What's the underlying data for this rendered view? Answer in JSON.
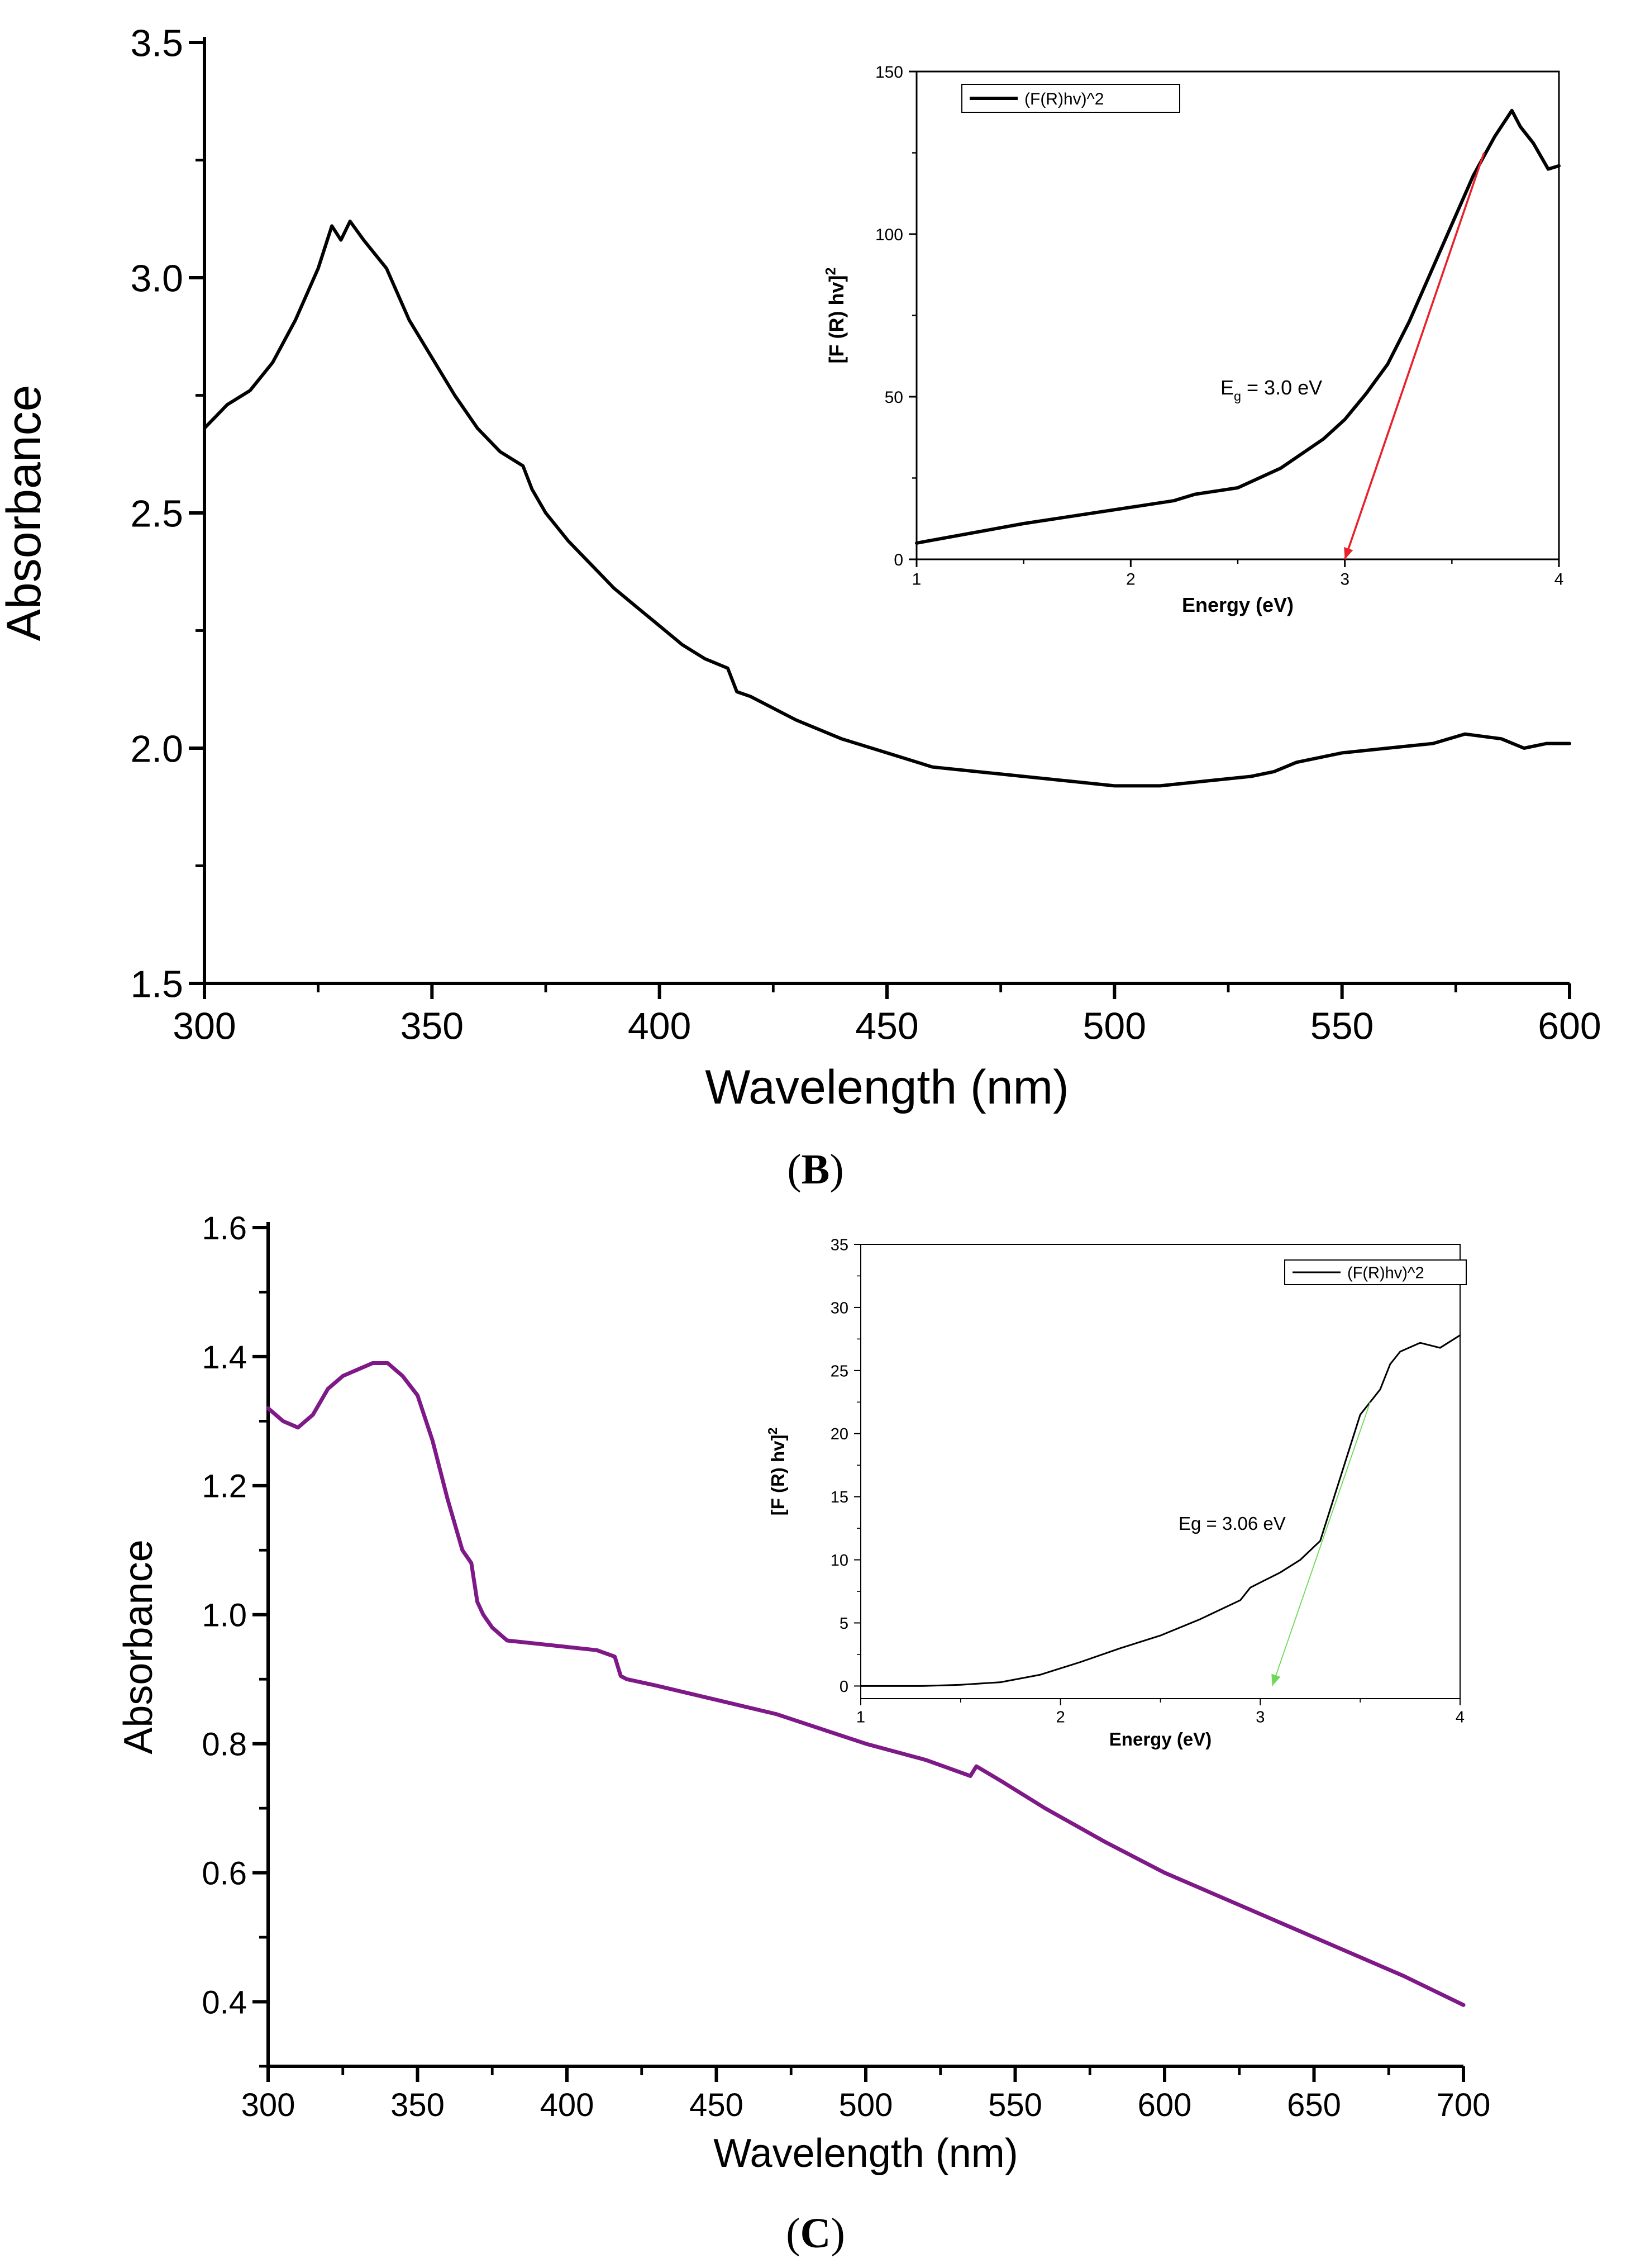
{
  "panels": [
    {
      "id": "B",
      "caption_open": "(",
      "caption_letter": "B",
      "caption_close": ")",
      "chart_index": 0,
      "inset_index": 1
    },
    {
      "id": "C",
      "caption_open": "(",
      "caption_letter": "C",
      "caption_close": ")",
      "chart_index": 2,
      "inset_index": 3
    }
  ],
  "chart_data": [
    {
      "panel": "B",
      "type": "line",
      "title": "",
      "xlabel": "Wavelength (nm)",
      "ylabel": "Absorbance",
      "xlim": [
        300,
        600
      ],
      "ylim": [
        1.5,
        3.5
      ],
      "xticks": [
        300,
        350,
        400,
        450,
        500,
        550,
        600
      ],
      "xtick_labels": [
        "300",
        "350",
        "400",
        "450",
        "500",
        "550",
        "600"
      ],
      "yticks": [
        1.5,
        2.0,
        2.5,
        3.0,
        3.5
      ],
      "ytick_labels": [
        "1.5",
        "2.0",
        "2.5",
        "3.0",
        "3.5"
      ],
      "grid": false,
      "colors": {
        "line": "#000000",
        "axes": "#000000"
      },
      "series": [
        {
          "x": [
            300,
            305,
            310,
            315,
            320,
            325,
            328,
            330,
            332,
            335,
            340,
            345,
            350,
            355,
            360,
            365,
            370,
            372,
            375,
            380,
            385,
            390,
            395,
            400,
            405,
            410,
            415,
            417,
            420,
            430,
            440,
            450,
            460,
            470,
            480,
            490,
            500,
            510,
            520,
            530,
            535,
            540,
            550,
            560,
            570,
            577,
            585,
            590,
            595,
            600
          ],
          "y": [
            2.68,
            2.73,
            2.76,
            2.82,
            2.91,
            3.02,
            3.11,
            3.08,
            3.12,
            3.08,
            3.02,
            2.91,
            2.83,
            2.75,
            2.68,
            2.63,
            2.6,
            2.55,
            2.5,
            2.44,
            2.39,
            2.34,
            2.3,
            2.26,
            2.22,
            2.19,
            2.17,
            2.12,
            2.11,
            2.06,
            2.02,
            1.99,
            1.96,
            1.95,
            1.94,
            1.93,
            1.92,
            1.92,
            1.93,
            1.94,
            1.95,
            1.97,
            1.99,
            2.0,
            2.01,
            2.03,
            2.02,
            2.0,
            2.01,
            2.01
          ]
        }
      ]
    },
    {
      "panel": "B",
      "type": "line",
      "title": "",
      "xlabel": "Energy (eV)",
      "ylabel_main": "[F (R) hv]",
      "ylabel_sup": "2",
      "xlim": [
        1,
        4
      ],
      "ylim": [
        0,
        150
      ],
      "xticks": [
        1,
        2,
        3,
        4
      ],
      "xtick_labels": [
        "1",
        "2",
        "3",
        "4"
      ],
      "yticks": [
        0,
        50,
        100,
        150
      ],
      "ytick_labels": [
        "0",
        "50",
        "100",
        "150"
      ],
      "grid": false,
      "legend": {
        "entries": [
          "(F(R)hv)^2"
        ],
        "placement": "top-left"
      },
      "annotation": {
        "main": "E",
        "sub": "g",
        "rest": " = 3.0 eV"
      },
      "colors": {
        "line": "#000000",
        "fit": "#e8212b"
      },
      "series": [
        {
          "name": "(F(R)hv)^2",
          "x": [
            1.0,
            1.5,
            2.0,
            2.2,
            2.3,
            2.5,
            2.7,
            2.9,
            3.0,
            3.1,
            3.2,
            3.3,
            3.4,
            3.5,
            3.6,
            3.7,
            3.75,
            3.78,
            3.82,
            3.88,
            3.95,
            4.0
          ],
          "y": [
            5,
            11,
            16,
            18,
            20,
            22,
            28,
            37,
            43,
            51,
            60,
            73,
            88,
            103,
            118,
            130,
            135,
            138,
            133,
            128,
            120,
            121
          ]
        }
      ],
      "fit_line": {
        "x": [
          3.0,
          3.65
        ],
        "y": [
          0,
          125
        ]
      }
    },
    {
      "panel": "C",
      "type": "line",
      "title": "",
      "xlabel": "Wavelength (nm)",
      "ylabel": "Absorbance",
      "xlim": [
        300,
        700
      ],
      "ylim": [
        0.3,
        1.6
      ],
      "xticks": [
        300,
        350,
        400,
        450,
        500,
        550,
        600,
        650,
        700
      ],
      "xtick_labels": [
        "300",
        "350",
        "400",
        "450",
        "500",
        "550",
        "600",
        "650",
        "700"
      ],
      "yticks": [
        0.4,
        0.6,
        0.8,
        1.0,
        1.2,
        1.4,
        1.6
      ],
      "ytick_labels": [
        "0.4",
        "0.6",
        "0.8",
        "1.0",
        "1.2",
        "1.4",
        "1.6"
      ],
      "grid": false,
      "colors": {
        "line": "#7e1987",
        "axes": "#000000"
      },
      "series": [
        {
          "x": [
            300,
            305,
            310,
            315,
            320,
            325,
            330,
            335,
            340,
            345,
            350,
            355,
            360,
            365,
            368,
            370,
            372,
            375,
            380,
            390,
            400,
            410,
            416,
            418,
            420,
            430,
            450,
            470,
            500,
            520,
            535,
            537,
            545,
            560,
            580,
            600,
            620,
            640,
            660,
            680,
            700
          ],
          "y": [
            1.32,
            1.3,
            1.29,
            1.31,
            1.35,
            1.37,
            1.38,
            1.39,
            1.39,
            1.37,
            1.34,
            1.27,
            1.18,
            1.1,
            1.08,
            1.02,
            1.0,
            0.98,
            0.96,
            0.955,
            0.95,
            0.945,
            0.935,
            0.905,
            0.9,
            0.89,
            0.868,
            0.846,
            0.8,
            0.775,
            0.75,
            0.765,
            0.743,
            0.7,
            0.648,
            0.6,
            0.56,
            0.52,
            0.48,
            0.44,
            0.395
          ]
        }
      ]
    },
    {
      "panel": "C",
      "type": "line",
      "title": "",
      "xlabel": "Energy (eV)",
      "ylabel_main": "[F (R) hv]",
      "ylabel_sup": "2",
      "xlim": [
        1,
        4
      ],
      "ylim": [
        -1,
        35
      ],
      "xticks": [
        1,
        2,
        3,
        4
      ],
      "xtick_labels": [
        "1",
        "2",
        "3",
        "4"
      ],
      "yticks": [
        0,
        5,
        10,
        15,
        20,
        25,
        30,
        35
      ],
      "ytick_labels": [
        "0",
        "5",
        "10",
        "15",
        "20",
        "25",
        "30",
        "35"
      ],
      "grid": false,
      "legend": {
        "entries": [
          "(F(R)hv)^2"
        ],
        "placement": "top-right"
      },
      "annotation": {
        "main": "Eg = 3.06 eV",
        "sub": "",
        "rest": ""
      },
      "colors": {
        "line": "#000000",
        "fit": "#6ed957"
      },
      "series": [
        {
          "name": "(F(R)hv)^2",
          "x": [
            1.0,
            1.3,
            1.5,
            1.7,
            1.9,
            2.1,
            2.3,
            2.5,
            2.7,
            2.9,
            2.95,
            3.0,
            3.1,
            3.2,
            3.3,
            3.4,
            3.5,
            3.6,
            3.65,
            3.7,
            3.8,
            3.9,
            4.0
          ],
          "y": [
            0,
            0,
            0.1,
            0.3,
            0.9,
            1.9,
            3.0,
            4.0,
            5.3,
            6.8,
            7.8,
            8.2,
            9.0,
            10.0,
            11.5,
            16.5,
            21.5,
            23.5,
            25.5,
            26.5,
            27.2,
            26.8,
            27.8
          ]
        }
      ],
      "fit_line": {
        "x": [
          3.06,
          3.55
        ],
        "y": [
          0,
          22.5
        ]
      }
    }
  ]
}
